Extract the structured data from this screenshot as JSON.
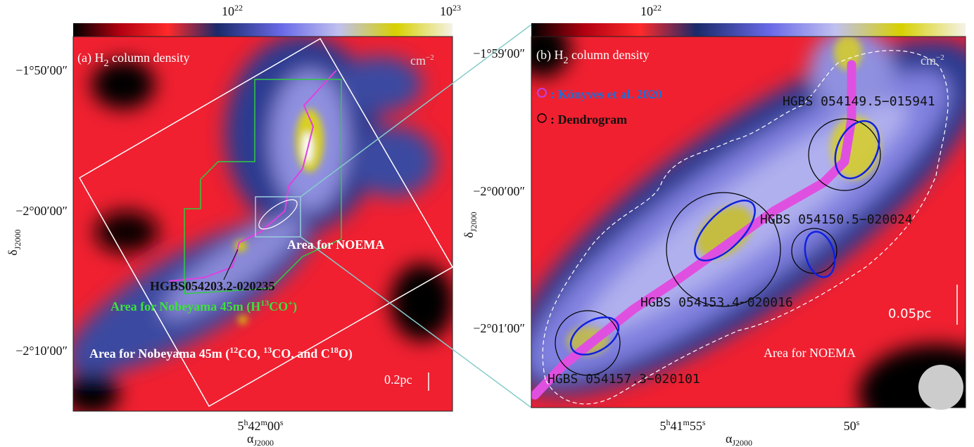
{
  "panel_a": {
    "colorbar_ticks": [
      {
        "base": "10",
        "exp": "22"
      },
      {
        "base": "10",
        "exp": "23"
      }
    ],
    "title": {
      "label": "(a) H",
      "sub": "2",
      "rest": " column density"
    },
    "unit": {
      "base": "cm",
      "exp": "−2"
    },
    "yticks": [
      "−1°50′00″",
      "−2°00′00″",
      "−2°10′00″"
    ],
    "ylabel": {
      "symbol": "δ",
      "sub": "J2000"
    },
    "xtick": {
      "h": "5",
      "hs": "h",
      "m": "42",
      "ms": "m",
      "s": "00",
      "ss": "s"
    },
    "xlabel": {
      "symbol": "α",
      "sub": "J2000"
    },
    "noema_label": "Area for NOEMA",
    "source_label": "HGBS054203.2-020235",
    "nobeyama_h13co": {
      "a": "Area for Nobeyama 45m (H",
      "sup1": "13",
      "b": "CO",
      "sup2": "+",
      "c": ")"
    },
    "nobeyama_co": {
      "a": "Area for Nobeyama 45m (",
      "sup1": "12",
      "b": "CO, ",
      "sup2": "13",
      "c": "CO, and C",
      "sup3": "18",
      "d": "O)"
    },
    "scale_bar": "0.2pc"
  },
  "panel_b": {
    "colorbar_ticks": [
      {
        "base": "10",
        "exp": "22"
      }
    ],
    "title": {
      "label": "(b) H",
      "sub": "2",
      "rest": " column density"
    },
    "unit": {
      "base": "cm",
      "exp": "−2"
    },
    "yticks": [
      "−1°59′00″",
      "−2°00′00″",
      "−2°01′00″"
    ],
    "ylabel": {
      "symbol": "δ",
      "sub": "J2000"
    },
    "xticks": [
      {
        "h": "5",
        "hs": "h",
        "m": "41",
        "ms": "m",
        "s": "55",
        "ss": "s"
      },
      {
        "s": "50",
        "ss": "s"
      }
    ],
    "xlabel": {
      "symbol": "α",
      "sub": "J2000"
    },
    "legend": [
      ": Könyves et al. 2020",
      ": Dendrogram"
    ],
    "sources": [
      "HGBS 054149.5−015941",
      "HGBS 054150.5−020024",
      "HGBS 054153.4−020016",
      "HGBS 054157.3−020101"
    ],
    "scale_bar": "0.05pc",
    "noema_label": "Area for NOEMA"
  }
}
